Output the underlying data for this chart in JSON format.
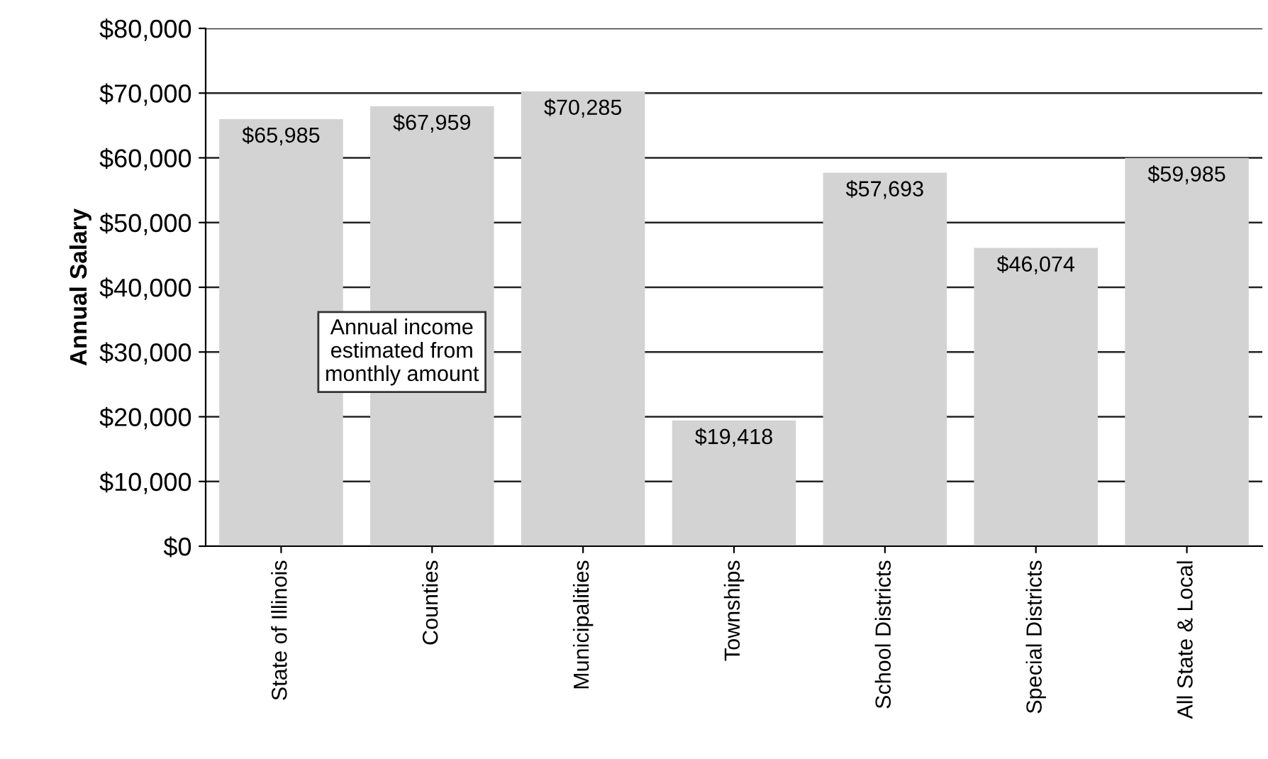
{
  "chart_data": {
    "type": "bar",
    "ylabel": "Annual Salary",
    "categories": [
      "State of Illinois",
      "Counties",
      "Municipalities",
      "Townships",
      "School Districts",
      "Special Districts",
      "All State & Local"
    ],
    "values": [
      65985,
      67959,
      70285,
      19418,
      57693,
      46074,
      59985
    ],
    "value_labels": [
      "$65,985",
      "$67,959",
      "$70,285",
      "$19,418",
      "$57,693",
      "$46,074",
      "$59,985"
    ],
    "color": "#d3d3d3",
    "ylim": [
      0,
      80000
    ],
    "yticks": [
      {
        "value": 0,
        "label": "$0"
      },
      {
        "value": 10000,
        "label": "$10,000"
      },
      {
        "value": 20000,
        "label": "$20,000"
      },
      {
        "value": 30000,
        "label": "$30,000"
      },
      {
        "value": 40000,
        "label": "$40,000"
      },
      {
        "value": 50000,
        "label": "$50,000"
      },
      {
        "value": 60000,
        "label": "$60,000"
      },
      {
        "value": 70000,
        "label": "$70,000"
      },
      {
        "value": 80000,
        "label": "$80,000"
      }
    ],
    "grid": "y",
    "annotations": [
      "Annual income\nestimated from\nmonthly amount"
    ]
  }
}
